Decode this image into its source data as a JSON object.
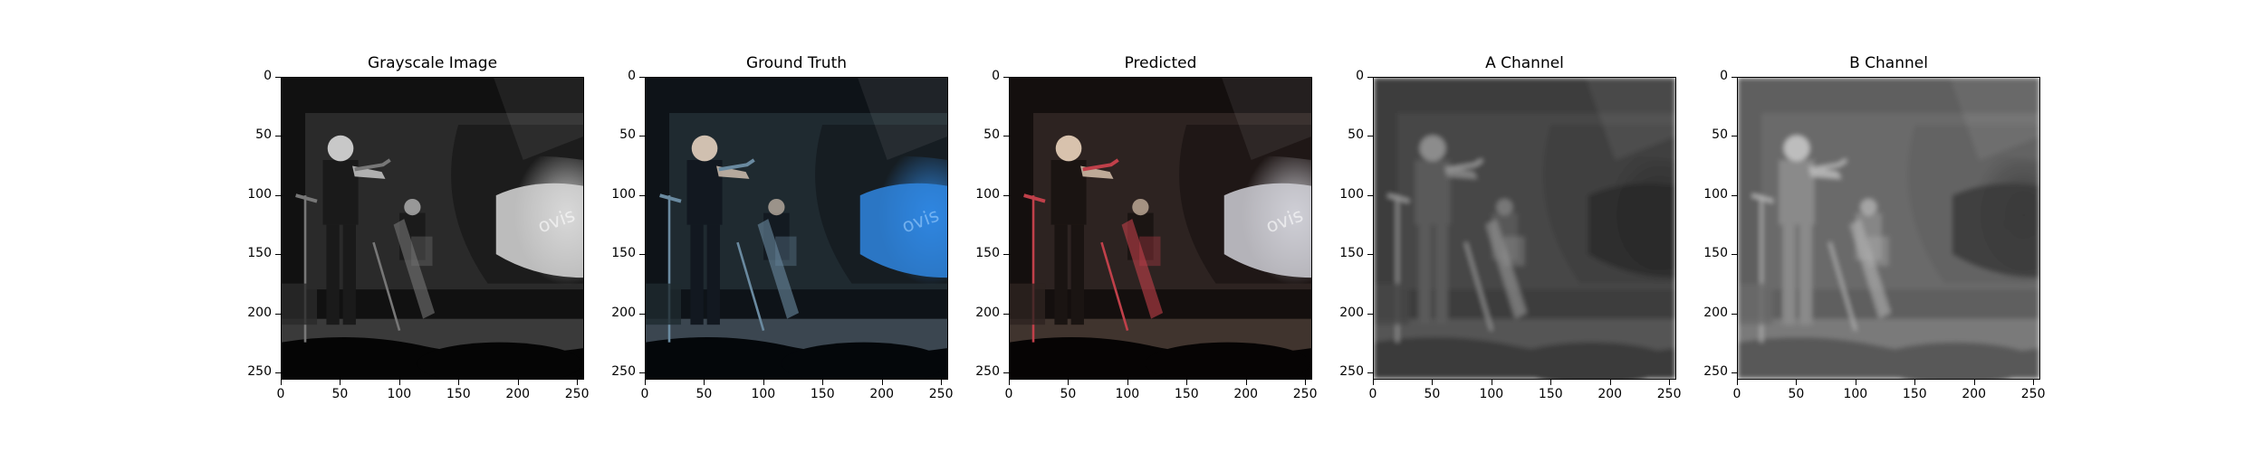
{
  "panels": [
    {
      "title": "Grayscale Image",
      "style": "gray"
    },
    {
      "title": "Ground Truth",
      "style": "truth"
    },
    {
      "title": "Predicted",
      "style": "predicted"
    },
    {
      "title": "A Channel",
      "style": "channel-a"
    },
    {
      "title": "B Channel",
      "style": "channel-b"
    }
  ],
  "axes": {
    "x_ticks": [
      "0",
      "50",
      "100",
      "150",
      "200",
      "250"
    ],
    "y_ticks": [
      "0",
      "50",
      "100",
      "150",
      "200",
      "250"
    ],
    "x_range": [
      0,
      256
    ],
    "y_range": [
      0,
      256
    ]
  },
  "colors": {
    "spotlight_blue": "#2f86e0",
    "red_accent": "#c0404a",
    "dark": "#0b0b0b"
  }
}
